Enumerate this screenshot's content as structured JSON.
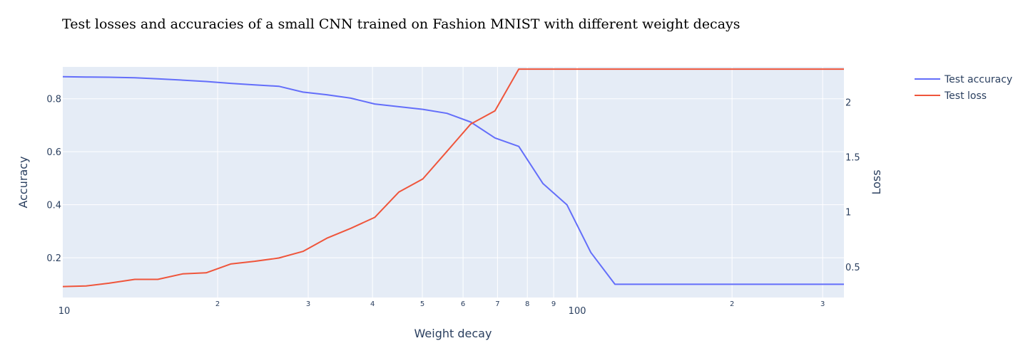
{
  "chart_data": {
    "type": "line",
    "title": "Test losses and accuracies of a small CNN trained on Fashion MNIST with different weight decays",
    "xlabel": "Weight decay",
    "ylabel_left": "Accuracy",
    "ylabel_right": "Loss",
    "x_scale": "log",
    "xlim": [
      10,
      330
    ],
    "ylim_left": [
      0.05,
      0.92
    ],
    "ylim_right": [
      0.22,
      2.32
    ],
    "x_ticks": [
      {
        "value": 10,
        "label": "10",
        "major": true
      },
      {
        "value": 20,
        "label": "2",
        "major": false
      },
      {
        "value": 30,
        "label": "3",
        "major": false
      },
      {
        "value": 40,
        "label": "4",
        "major": false
      },
      {
        "value": 50,
        "label": "5",
        "major": false
      },
      {
        "value": 60,
        "label": "6",
        "major": false
      },
      {
        "value": 70,
        "label": "7",
        "major": false
      },
      {
        "value": 80,
        "label": "8",
        "major": false
      },
      {
        "value": 90,
        "label": "9",
        "major": false
      },
      {
        "value": 100,
        "label": "100",
        "major": true
      },
      {
        "value": 200,
        "label": "2",
        "major": false
      },
      {
        "value": 300,
        "label": "3",
        "major": false
      }
    ],
    "y_left_ticks": [
      {
        "value": 0.2,
        "label": "0.2"
      },
      {
        "value": 0.4,
        "label": "0.4"
      },
      {
        "value": 0.6,
        "label": "0.6"
      },
      {
        "value": 0.8,
        "label": "0.8"
      }
    ],
    "y_right_ticks": [
      {
        "value": 0.5,
        "label": "0.5"
      },
      {
        "value": 1,
        "label": "1"
      },
      {
        "value": 1.5,
        "label": "1.5"
      },
      {
        "value": 2,
        "label": "2"
      }
    ],
    "grid": true,
    "legend_position": "top-right",
    "series": [
      {
        "name": "Test accuracy",
        "axis": "left",
        "color": "#636efa",
        "x": [
          10.0,
          11.1,
          12.3,
          13.8,
          15.3,
          17.1,
          19.0,
          21.2,
          23.6,
          26.3,
          29.3,
          32.6,
          36.3,
          40.4,
          45.0,
          50.1,
          55.8,
          62.1,
          69.2,
          77.0,
          85.8,
          95.5,
          106.3,
          118.4,
          131.8,
          146.8,
          163.4,
          181.9,
          202.6,
          225.6,
          251.2,
          279.7,
          311.4,
          330.0
        ],
        "values": [
          0.883,
          0.882,
          0.881,
          0.879,
          0.875,
          0.87,
          0.865,
          0.858,
          0.852,
          0.847,
          0.825,
          0.815,
          0.802,
          0.78,
          0.77,
          0.76,
          0.745,
          0.712,
          0.652,
          0.62,
          0.48,
          0.4,
          0.22,
          0.1,
          0.1,
          0.1,
          0.1,
          0.1,
          0.1,
          0.1,
          0.1,
          0.1,
          0.1,
          0.1
        ]
      },
      {
        "name": "Test loss",
        "axis": "right",
        "color": "#ef553b",
        "x": [
          10.0,
          11.1,
          12.3,
          13.8,
          15.3,
          17.1,
          19.0,
          21.2,
          23.6,
          26.3,
          29.3,
          32.6,
          36.3,
          40.4,
          45.0,
          50.1,
          55.8,
          62.1,
          69.2,
          77.0,
          85.8,
          95.5,
          106.3,
          118.4,
          131.8,
          146.8,
          163.4,
          181.9,
          202.6,
          225.6,
          251.2,
          279.7,
          311.4,
          330.0
        ],
        "values": [
          0.32,
          0.325,
          0.35,
          0.385,
          0.385,
          0.435,
          0.445,
          0.525,
          0.55,
          0.58,
          0.64,
          0.76,
          0.85,
          0.95,
          1.18,
          1.3,
          1.55,
          1.8,
          1.92,
          2.3,
          2.3,
          2.3,
          2.3,
          2.3,
          2.3,
          2.3,
          2.3,
          2.3,
          2.3,
          2.3,
          2.3,
          2.3,
          2.3,
          2.3
        ]
      }
    ]
  },
  "colors": {
    "plot_background": "#e5ecf6",
    "grid": "#ffffff",
    "text": "#2a3f5f"
  }
}
